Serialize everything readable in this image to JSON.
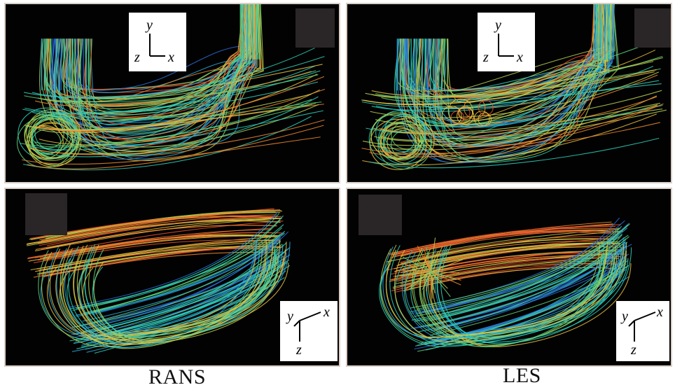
{
  "captions": {
    "left": "RANS",
    "right": "LES"
  },
  "axes_side_view": {
    "vertical": "y",
    "horizontal": "x",
    "out_of_plane": "z"
  },
  "axes_top_view": {
    "oblique": "y",
    "horizontal": "x",
    "down": "z"
  },
  "colors": {
    "background": "#020202",
    "streamline_palette": [
      "#2a6fd8",
      "#2aa7d8",
      "#2fd0b8",
      "#5fd07a",
      "#b8d050",
      "#e8c040",
      "#f08a30",
      "#e8502a"
    ]
  }
}
